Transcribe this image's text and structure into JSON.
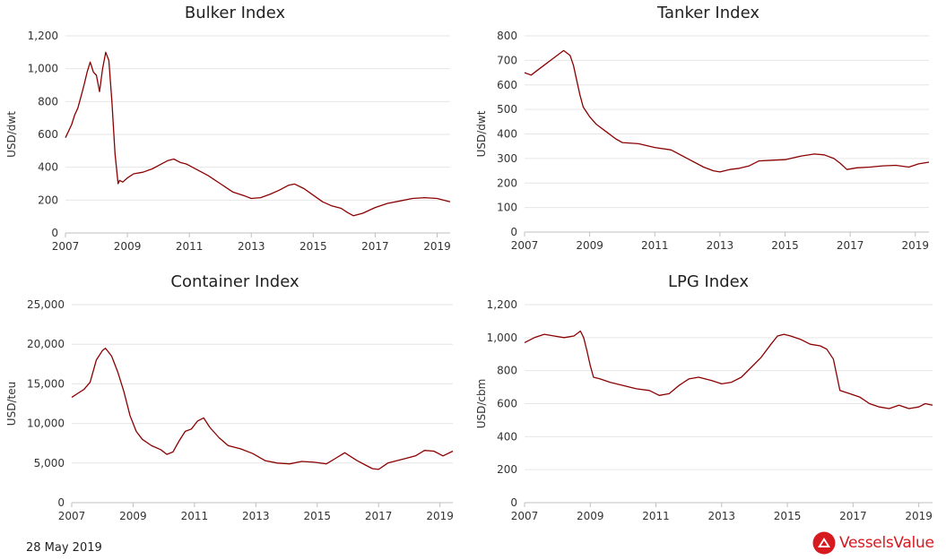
{
  "footer": {
    "date": "28 May 2019",
    "brand": "VesselsValue",
    "brand_logo": "vesselsvalue-logo-icon",
    "brand_color": "#d71920"
  },
  "chart_style": {
    "line_color": "#8b0000",
    "grid_color": "#e6e6e6",
    "axis_color": "#333333",
    "title_color": "#222222",
    "grid": "horizontal"
  },
  "chart_data": [
    {
      "type": "line",
      "title": "Bulker Index",
      "xlabel": "",
      "ylabel": "USD/dwt",
      "xlim": [
        2007,
        2019.42
      ],
      "ylim": [
        0,
        1200
      ],
      "xticks": [
        "2007",
        "2009",
        "2011",
        "2013",
        "2015",
        "2017",
        "2019"
      ],
      "yticks": [
        "0",
        "200",
        "400",
        "600",
        "800",
        "1,000",
        "1,200"
      ],
      "series": [
        {
          "x": [
            2007.0,
            2007.1,
            2007.2,
            2007.3,
            2007.4,
            2007.5,
            2007.6,
            2007.7,
            2007.8,
            2007.9,
            2008.0,
            2008.1,
            2008.2,
            2008.3,
            2008.4,
            2008.5,
            2008.6,
            2008.7,
            2008.75,
            2008.85,
            2009.0,
            2009.2,
            2009.5,
            2009.8,
            2010.0,
            2010.3,
            2010.5,
            2010.7,
            2010.9,
            2011.0,
            2011.3,
            2011.6,
            2012.0,
            2012.4,
            2012.8,
            2013.0,
            2013.3,
            2013.6,
            2013.9,
            2014.2,
            2014.4,
            2014.7,
            2015.0,
            2015.3,
            2015.6,
            2015.9,
            2016.1,
            2016.3,
            2016.6,
            2017.0,
            2017.4,
            2017.8,
            2018.2,
            2018.6,
            2019.0,
            2019.42
          ],
          "y": [
            580,
            620,
            660,
            720,
            760,
            830,
            900,
            980,
            1040,
            980,
            960,
            860,
            1000,
            1100,
            1050,
            800,
            480,
            300,
            320,
            310,
            335,
            360,
            370,
            390,
            410,
            440,
            450,
            430,
            420,
            410,
            380,
            350,
            300,
            250,
            225,
            210,
            215,
            235,
            260,
            290,
            298,
            270,
            230,
            190,
            165,
            150,
            125,
            105,
            120,
            155,
            180,
            195,
            210,
            215,
            210,
            190
          ]
        }
      ]
    },
    {
      "type": "line",
      "title": "Tanker Index",
      "xlabel": "",
      "ylabel": "USD/dwt",
      "xlim": [
        2007,
        2019.42
      ],
      "ylim": [
        0,
        800
      ],
      "xticks": [
        "2007",
        "2009",
        "2011",
        "2013",
        "2015",
        "2017",
        "2019"
      ],
      "yticks": [
        "0",
        "100",
        "200",
        "300",
        "400",
        "500",
        "600",
        "700",
        "800"
      ],
      "series": [
        {
          "x": [
            2007.0,
            2007.2,
            2007.4,
            2007.6,
            2007.8,
            2008.0,
            2008.2,
            2008.4,
            2008.5,
            2008.6,
            2008.7,
            2008.8,
            2008.9,
            2009.0,
            2009.2,
            2009.5,
            2009.8,
            2010.0,
            2010.5,
            2011.0,
            2011.5,
            2012.0,
            2012.5,
            2012.8,
            2013.0,
            2013.3,
            2013.6,
            2013.9,
            2014.2,
            2014.6,
            2015.0,
            2015.5,
            2015.9,
            2016.2,
            2016.5,
            2016.7,
            2016.9,
            2017.2,
            2017.6,
            2018.0,
            2018.4,
            2018.8,
            2019.1,
            2019.42
          ],
          "y": [
            650,
            640,
            660,
            680,
            700,
            720,
            740,
            720,
            680,
            620,
            560,
            510,
            490,
            470,
            440,
            410,
            380,
            365,
            360,
            345,
            335,
            300,
            265,
            250,
            245,
            255,
            260,
            270,
            290,
            293,
            295,
            310,
            318,
            315,
            300,
            280,
            255,
            262,
            265,
            270,
            272,
            265,
            278,
            285
          ]
        }
      ]
    },
    {
      "type": "line",
      "title": "Container Index",
      "xlabel": "",
      "ylabel": "USD/teu",
      "xlim": [
        2007,
        2019.42
      ],
      "ylim": [
        0,
        25000
      ],
      "xticks": [
        "2007",
        "2009",
        "2011",
        "2013",
        "2015",
        "2017",
        "2019"
      ],
      "yticks": [
        "0",
        "5,000",
        "10,000",
        "15,000",
        "20,000",
        "25,000"
      ],
      "series": [
        {
          "x": [
            2007.0,
            2007.2,
            2007.4,
            2007.6,
            2007.8,
            2008.0,
            2008.1,
            2008.3,
            2008.5,
            2008.7,
            2008.9,
            2009.1,
            2009.3,
            2009.6,
            2009.9,
            2010.1,
            2010.3,
            2010.5,
            2010.7,
            2010.9,
            2011.1,
            2011.3,
            2011.5,
            2011.8,
            2012.1,
            2012.5,
            2012.9,
            2013.3,
            2013.7,
            2014.1,
            2014.5,
            2014.9,
            2015.3,
            2015.6,
            2015.9,
            2016.3,
            2016.6,
            2016.8,
            2017.0,
            2017.3,
            2017.6,
            2017.9,
            2018.2,
            2018.5,
            2018.8,
            2019.1,
            2019.42
          ],
          "y": [
            13300,
            13800,
            14300,
            15200,
            18000,
            19200,
            19500,
            18500,
            16500,
            14000,
            11000,
            9000,
            8000,
            7200,
            6700,
            6100,
            6400,
            7800,
            9000,
            9300,
            10300,
            10700,
            9500,
            8200,
            7200,
            6800,
            6200,
            5300,
            5000,
            4900,
            5200,
            5100,
            4900,
            5600,
            6300,
            5300,
            4700,
            4300,
            4200,
            5000,
            5300,
            5600,
            5900,
            6600,
            6500,
            5900,
            6500
          ]
        }
      ]
    },
    {
      "type": "line",
      "title": "LPG Index",
      "xlabel": "",
      "ylabel": "USD/cbm",
      "xlim": [
        2007,
        2019.42
      ],
      "ylim": [
        0,
        1200
      ],
      "xticks": [
        "2007",
        "2009",
        "2011",
        "2013",
        "2015",
        "2017",
        "2019"
      ],
      "yticks": [
        "0",
        "200",
        "400",
        "600",
        "800",
        "1,000",
        "1,200"
      ],
      "series": [
        {
          "x": [
            2007.0,
            2007.3,
            2007.6,
            2007.9,
            2008.2,
            2008.5,
            2008.7,
            2008.8,
            2008.9,
            2009.0,
            2009.1,
            2009.3,
            2009.6,
            2010.0,
            2010.4,
            2010.8,
            2011.1,
            2011.4,
            2011.7,
            2012.0,
            2012.3,
            2012.7,
            2013.0,
            2013.3,
            2013.6,
            2013.9,
            2014.2,
            2014.5,
            2014.7,
            2014.9,
            2015.1,
            2015.4,
            2015.7,
            2016.0,
            2016.2,
            2016.4,
            2016.6,
            2016.9,
            2017.2,
            2017.5,
            2017.8,
            2018.1,
            2018.4,
            2018.7,
            2019.0,
            2019.2,
            2019.42
          ],
          "y": [
            970,
            1000,
            1020,
            1010,
            1000,
            1010,
            1040,
            1000,
            920,
            830,
            760,
            750,
            730,
            710,
            690,
            680,
            650,
            660,
            710,
            750,
            760,
            740,
            720,
            730,
            760,
            820,
            880,
            960,
            1010,
            1020,
            1010,
            990,
            960,
            950,
            930,
            870,
            680,
            660,
            640,
            600,
            580,
            570,
            590,
            570,
            580,
            600,
            590
          ]
        }
      ]
    }
  ]
}
